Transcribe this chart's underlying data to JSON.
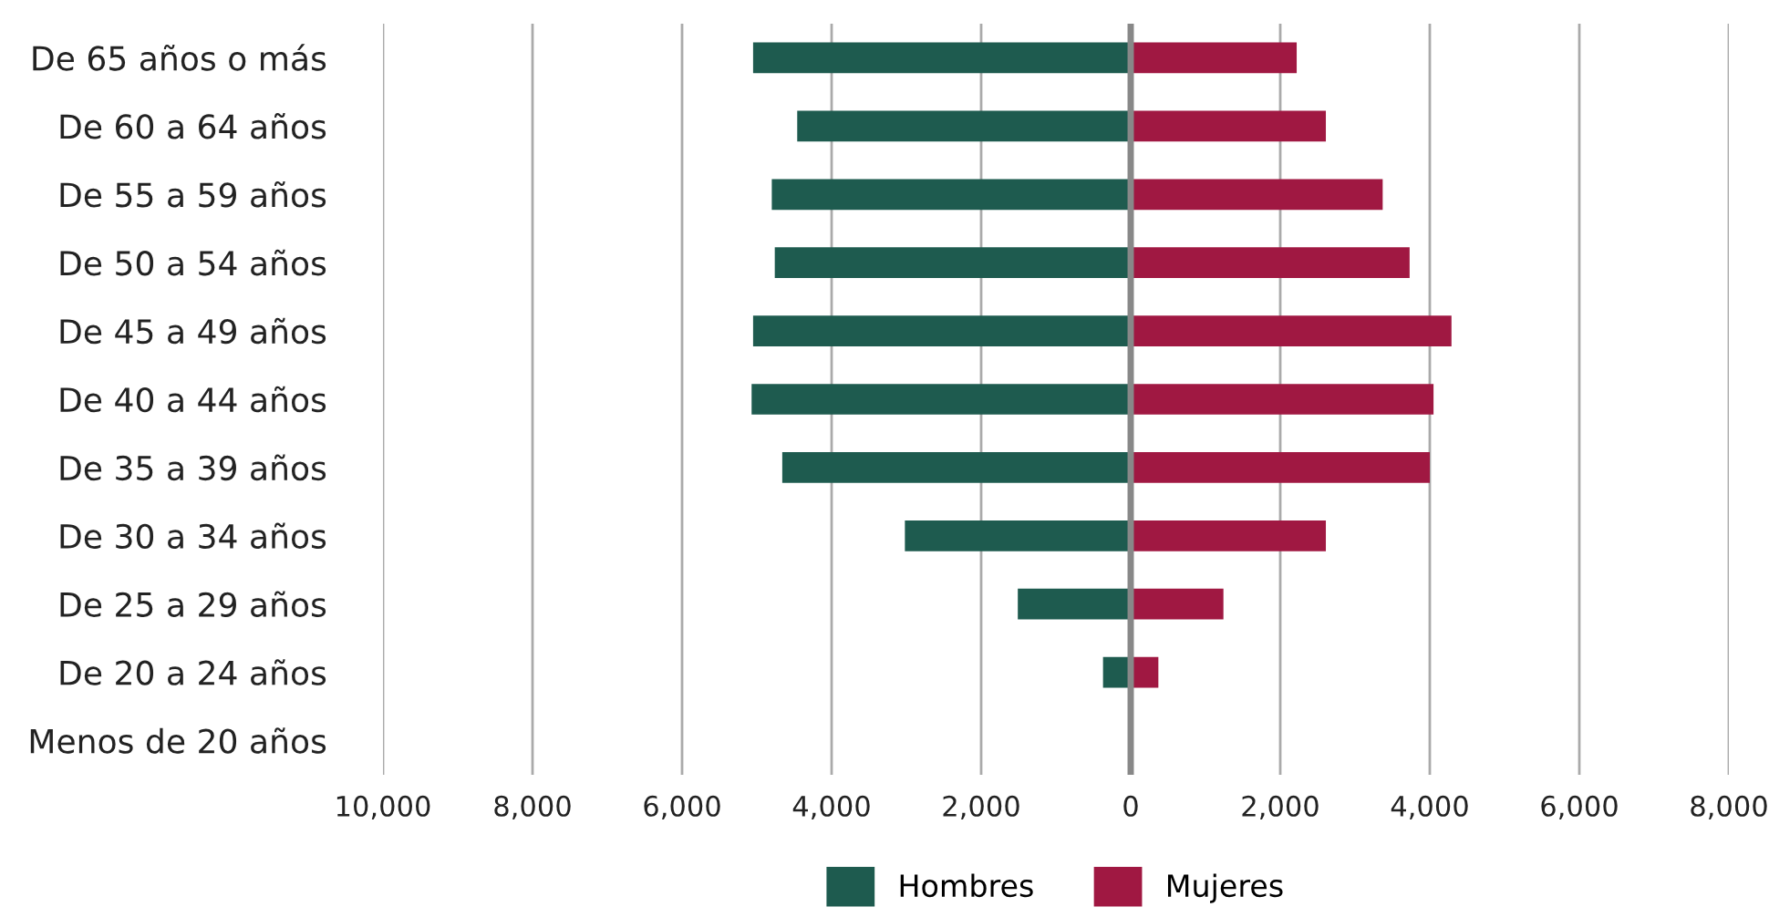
{
  "chart_data": {
    "type": "bar",
    "orientation": "horizontal",
    "stacked": true,
    "categories": [
      "De 65 años o más",
      "De 60 a 64 años",
      "De 55 a 59 años",
      "De 50 a 54 años",
      "De 45 a 49 años",
      "De 40 a 44 años",
      "De 35 a 39 años",
      "De 30 a 34 años",
      "De 25 a 29 años",
      "De 20 a 24 años",
      "Menos de 20 años"
    ],
    "series": [
      {
        "name": "Hombres",
        "color": "#1e5b4f",
        "values": [
          -5050,
          -4460,
          -4800,
          -4760,
          -5050,
          -5070,
          -4660,
          -3020,
          -1510,
          -370,
          0
        ]
      },
      {
        "name": "Mujeres",
        "color": "#a01842",
        "values": [
          2220,
          2610,
          3370,
          3730,
          4290,
          4050,
          4000,
          2610,
          1240,
          370,
          0
        ]
      }
    ],
    "xlim": [
      -10000,
      8000
    ],
    "xticks": [
      {
        "value": -10000,
        "label": "10,000"
      },
      {
        "value": -8000,
        "label": "8,000"
      },
      {
        "value": -6000,
        "label": "6,000"
      },
      {
        "value": -4000,
        "label": "4,000"
      },
      {
        "value": -2000,
        "label": "2,000"
      },
      0,
      {
        "value": 2000,
        "label": "2,000"
      },
      {
        "value": 4000,
        "label": "4,000"
      },
      {
        "value": 6000,
        "label": "6,000"
      },
      {
        "value": 8000,
        "label": "8,000"
      }
    ],
    "grid": "x",
    "legend": "bottom",
    "ref_lines": [
      {
        "axis": "x",
        "value": 0,
        "color": "#888888"
      }
    ]
  }
}
